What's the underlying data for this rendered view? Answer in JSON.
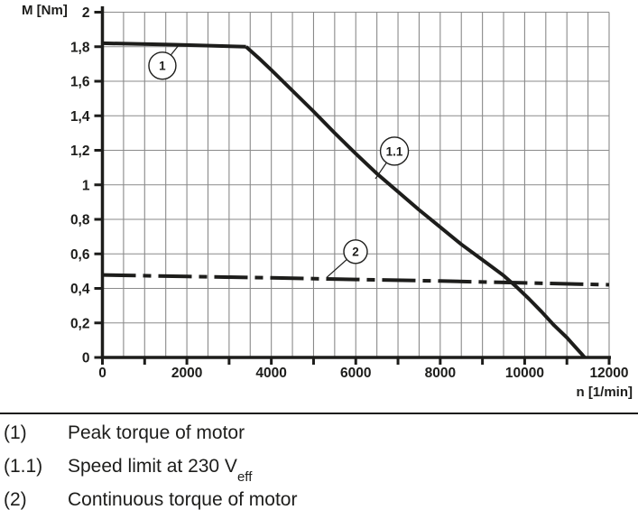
{
  "chart": {
    "y_axis_label": "M [Nm]",
    "x_axis_label": "n [1/min]",
    "y_tick_labels": [
      "2",
      "1,8",
      "1,6",
      "1,4",
      "1,2",
      "1",
      "0,8",
      "0,6",
      "0,4",
      "0,2",
      "0"
    ],
    "x_tick_labels": [
      "0",
      "2000",
      "4000",
      "6000",
      "8000",
      "10000",
      "12000"
    ]
  },
  "chart_data": {
    "type": "line",
    "title": "",
    "xlabel": "n [1/min]",
    "ylabel": "M [Nm]",
    "xlim": [
      0,
      12000
    ],
    "ylim": [
      0,
      2
    ],
    "x_minor_grid_step": 500,
    "y_grid_step": 0.2,
    "x_tick_step": 1000,
    "x_label_step": 2000,
    "grid": "on",
    "legend_position": "below",
    "colors": {
      "curve": "#1d1d1b",
      "grid": "#8a8a8a",
      "axis": "#1d1d1b"
    },
    "series": [
      {
        "name": "1",
        "label": "Peak torque of motor",
        "style": "solid",
        "points": [
          [
            0,
            1.82
          ],
          [
            1700,
            1.812
          ],
          [
            3400,
            1.8
          ]
        ]
      },
      {
        "name": "1.1",
        "label": "Speed limit at 230 Veff",
        "style": "solid",
        "points": [
          [
            3400,
            1.8
          ],
          [
            3700,
            1.735
          ],
          [
            4000,
            1.665
          ],
          [
            4500,
            1.545
          ],
          [
            5000,
            1.425
          ],
          [
            5500,
            1.3
          ],
          [
            6000,
            1.18
          ],
          [
            6500,
            1.065
          ],
          [
            7000,
            0.96
          ],
          [
            7500,
            0.855
          ],
          [
            8000,
            0.755
          ],
          [
            8500,
            0.655
          ],
          [
            9000,
            0.565
          ],
          [
            9500,
            0.475
          ],
          [
            9800,
            0.41
          ],
          [
            10100,
            0.34
          ],
          [
            10400,
            0.265
          ],
          [
            10700,
            0.185
          ],
          [
            11000,
            0.115
          ],
          [
            11200,
            0.06
          ],
          [
            11350,
            0.02
          ],
          [
            11420,
            0
          ]
        ]
      },
      {
        "name": "2",
        "label": "Continuous torque of motor",
        "style": "dash-dot",
        "points": [
          [
            0,
            0.478
          ],
          [
            2000,
            0.469
          ],
          [
            4000,
            0.461
          ],
          [
            6000,
            0.452
          ],
          [
            8000,
            0.443
          ],
          [
            10000,
            0.432
          ],
          [
            12000,
            0.421
          ]
        ]
      }
    ],
    "callouts": [
      {
        "label": "1",
        "center": [
          1420,
          1.69
        ],
        "r": 15,
        "target": [
          1810,
          1.81
        ]
      },
      {
        "label": "1.1",
        "center": [
          6915,
          1.195
        ],
        "r": 15.5,
        "target": [
          6465,
          1.035
        ]
      },
      {
        "label": "2",
        "center": [
          5995,
          0.613
        ],
        "r": 13,
        "target": [
          5310,
          0.463
        ]
      }
    ]
  },
  "legend": {
    "items": [
      {
        "num": "(1)",
        "text": "Peak torque of motor",
        "sub": ""
      },
      {
        "num": "(1.1)",
        "text": "Speed limit at 230 V",
        "sub": "eff"
      },
      {
        "num": "(2)",
        "text": "Continuous torque of motor",
        "sub": ""
      }
    ]
  }
}
